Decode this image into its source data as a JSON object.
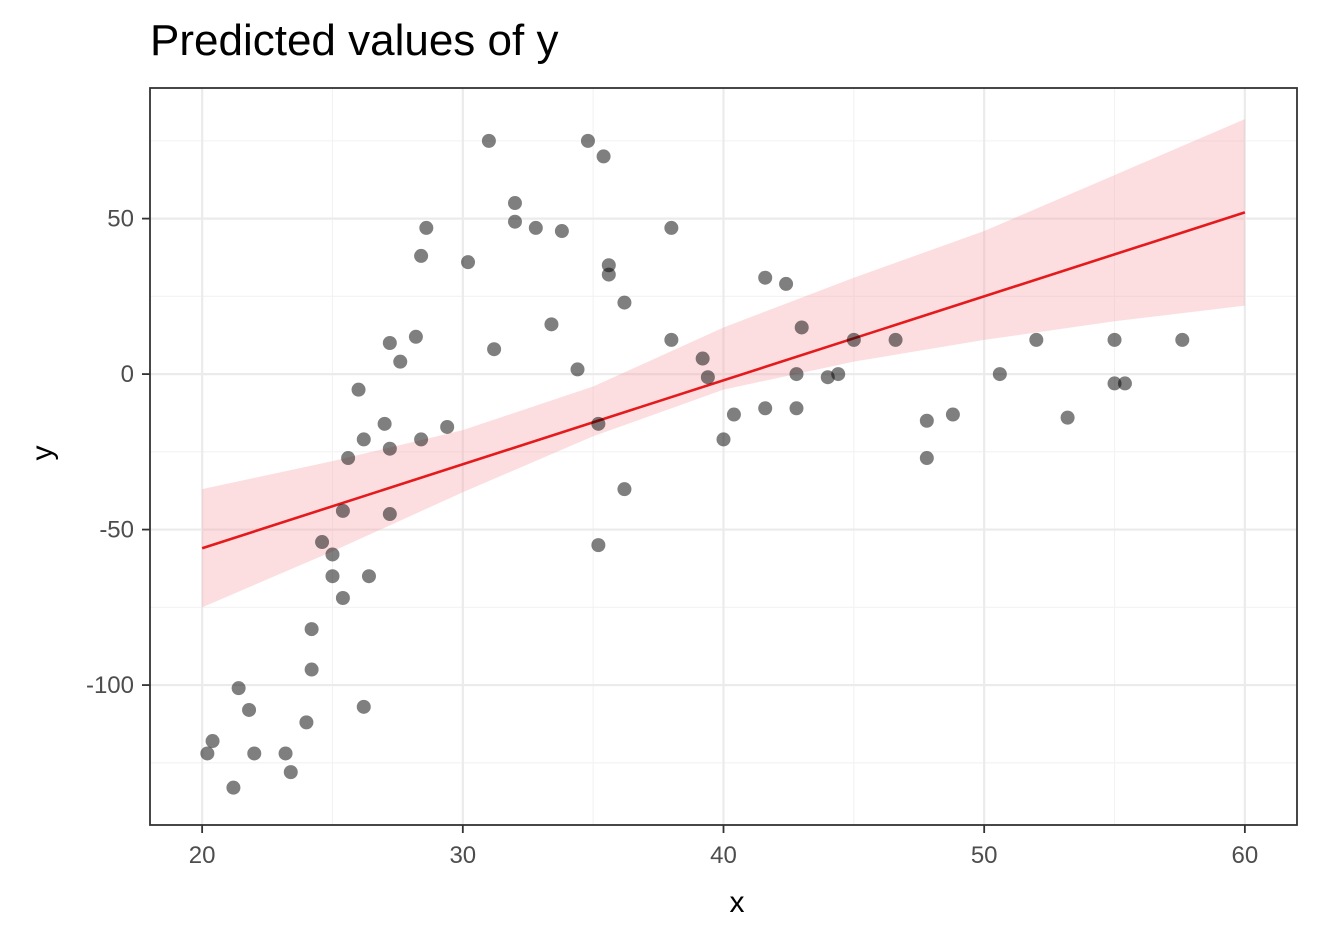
{
  "chart_data": {
    "type": "scatter",
    "title": "Predicted values of y",
    "xlabel": "x",
    "ylabel": "y",
    "xlim": [
      18,
      62
    ],
    "ylim": [
      -145,
      92
    ],
    "x_ticks": [
      20,
      30,
      40,
      50,
      60
    ],
    "y_ticks": [
      -100,
      -50,
      0,
      50
    ],
    "x_tick_labels": [
      "20",
      "30",
      "40",
      "50",
      "60"
    ],
    "y_tick_labels": [
      "-100",
      "-50",
      "0",
      "50"
    ],
    "grid": true,
    "legend": "none",
    "colors": {
      "points": "#000000",
      "fit_line": "#e41a1c",
      "ci_band": "#f8a3aa"
    },
    "points": [
      {
        "x": 20.2,
        "y": -122
      },
      {
        "x": 20.4,
        "y": -118
      },
      {
        "x": 21.2,
        "y": -133
      },
      {
        "x": 21.4,
        "y": -101
      },
      {
        "x": 21.8,
        "y": -108
      },
      {
        "x": 22.0,
        "y": -122
      },
      {
        "x": 23.2,
        "y": -122
      },
      {
        "x": 23.4,
        "y": -128
      },
      {
        "x": 24.0,
        "y": -112
      },
      {
        "x": 24.2,
        "y": -95
      },
      {
        "x": 24.2,
        "y": -82
      },
      {
        "x": 24.6,
        "y": -54
      },
      {
        "x": 25.0,
        "y": -58
      },
      {
        "x": 25.0,
        "y": -65
      },
      {
        "x": 25.4,
        "y": -72
      },
      {
        "x": 25.4,
        "y": -44
      },
      {
        "x": 25.6,
        "y": -27
      },
      {
        "x": 26.0,
        "y": -5
      },
      {
        "x": 26.2,
        "y": -21
      },
      {
        "x": 26.2,
        "y": -107
      },
      {
        "x": 26.4,
        "y": -65
      },
      {
        "x": 27.0,
        "y": -16
      },
      {
        "x": 27.2,
        "y": 10
      },
      {
        "x": 27.2,
        "y": -24
      },
      {
        "x": 27.2,
        "y": -45
      },
      {
        "x": 27.6,
        "y": 4
      },
      {
        "x": 28.2,
        "y": 12
      },
      {
        "x": 28.4,
        "y": 38
      },
      {
        "x": 28.4,
        "y": -21
      },
      {
        "x": 28.6,
        "y": 47
      },
      {
        "x": 29.4,
        "y": -17
      },
      {
        "x": 30.2,
        "y": 36
      },
      {
        "x": 31.0,
        "y": 75
      },
      {
        "x": 31.2,
        "y": 8
      },
      {
        "x": 32.0,
        "y": 55
      },
      {
        "x": 32.0,
        "y": 49
      },
      {
        "x": 32.8,
        "y": 47
      },
      {
        "x": 33.4,
        "y": 16
      },
      {
        "x": 33.8,
        "y": 46
      },
      {
        "x": 34.4,
        "y": 1.5
      },
      {
        "x": 34.8,
        "y": 75
      },
      {
        "x": 35.2,
        "y": -16
      },
      {
        "x": 35.2,
        "y": -55
      },
      {
        "x": 35.4,
        "y": 70
      },
      {
        "x": 35.6,
        "y": 35
      },
      {
        "x": 35.6,
        "y": 32
      },
      {
        "x": 36.2,
        "y": 23
      },
      {
        "x": 36.2,
        "y": -37
      },
      {
        "x": 38.0,
        "y": 47
      },
      {
        "x": 38.0,
        "y": 11
      },
      {
        "x": 39.2,
        "y": 5
      },
      {
        "x": 39.4,
        "y": -1
      },
      {
        "x": 40.0,
        "y": -21
      },
      {
        "x": 40.4,
        "y": -13
      },
      {
        "x": 41.6,
        "y": 31
      },
      {
        "x": 41.6,
        "y": -11
      },
      {
        "x": 42.4,
        "y": 29
      },
      {
        "x": 42.8,
        "y": 0
      },
      {
        "x": 42.8,
        "y": -11
      },
      {
        "x": 43.0,
        "y": 15
      },
      {
        "x": 44.0,
        "y": -1
      },
      {
        "x": 44.4,
        "y": 0
      },
      {
        "x": 45.0,
        "y": 11
      },
      {
        "x": 46.6,
        "y": 11
      },
      {
        "x": 47.8,
        "y": -15
      },
      {
        "x": 47.8,
        "y": -27
      },
      {
        "x": 48.8,
        "y": -13
      },
      {
        "x": 50.6,
        "y": 0
      },
      {
        "x": 52.0,
        "y": 11
      },
      {
        "x": 53.2,
        "y": -14
      },
      {
        "x": 55.0,
        "y": 11
      },
      {
        "x": 55.0,
        "y": -3
      },
      {
        "x": 55.4,
        "y": -3
      },
      {
        "x": 57.6,
        "y": 11
      }
    ],
    "fit_line": [
      {
        "x": 20,
        "y": -56
      },
      {
        "x": 60,
        "y": 52
      }
    ],
    "ci_band": [
      {
        "x": 20,
        "lower": -75,
        "upper": -37
      },
      {
        "x": 25,
        "lower": -57,
        "upper": -28
      },
      {
        "x": 30,
        "lower": -38,
        "upper": -18
      },
      {
        "x": 35,
        "lower": -20,
        "upper": -4
      },
      {
        "x": 40,
        "lower": -5,
        "upper": 15
      },
      {
        "x": 45,
        "lower": 4,
        "upper": 31
      },
      {
        "x": 50,
        "lower": 11,
        "upper": 46
      },
      {
        "x": 55,
        "lower": 17,
        "upper": 64
      },
      {
        "x": 60,
        "lower": 22,
        "upper": 82
      }
    ]
  }
}
